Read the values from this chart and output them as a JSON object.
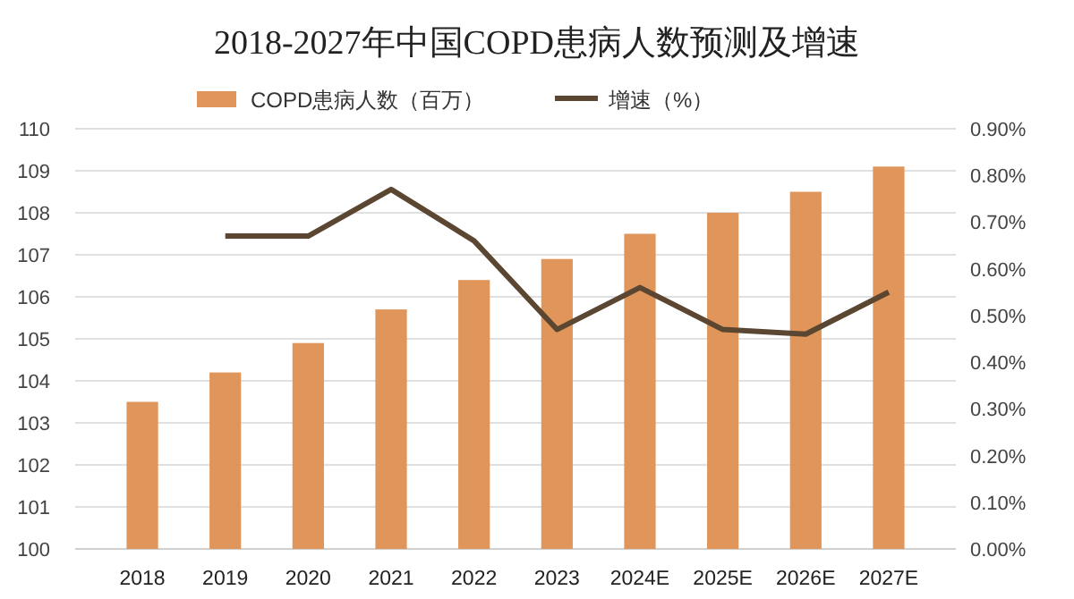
{
  "chart_data": {
    "type": "bar",
    "title": "2018-2027年中国COPD患病人数预测及增速",
    "categories": [
      "2018",
      "2019",
      "2020",
      "2021",
      "2022",
      "2023",
      "2024E",
      "2025E",
      "2026E",
      "2027E"
    ],
    "series": [
      {
        "name": "COPD患病人数（百万）",
        "color": "#e0955a",
        "values": [
          103.5,
          104.2,
          104.9,
          105.7,
          106.4,
          106.9,
          107.5,
          108.0,
          108.5,
          109.1
        ]
      },
      {
        "name": "增速（%）",
        "type": "line",
        "axis": "y2",
        "color": "#5b4631",
        "values": [
          null,
          0.67,
          0.67,
          0.77,
          0.66,
          0.47,
          0.56,
          0.47,
          0.46,
          0.55
        ]
      }
    ],
    "ylim": [
      100,
      110
    ],
    "yticks": [
      100,
      101,
      102,
      103,
      104,
      105,
      106,
      107,
      108,
      109,
      110
    ],
    "y2lim": [
      0,
      0.9
    ],
    "y2ticks": [
      {
        "value": 0,
        "label": "0.00%"
      },
      {
        "value": 0.1,
        "label": "0.10%"
      },
      {
        "value": 0.2,
        "label": "0.20%"
      },
      {
        "value": 0.3,
        "label": "0.30%"
      },
      {
        "value": 0.4,
        "label": "0.40%"
      },
      {
        "value": 0.5,
        "label": "0.50%"
      },
      {
        "value": 0.6,
        "label": "0.60%"
      },
      {
        "value": 0.7,
        "label": "0.70%"
      },
      {
        "value": 0.8,
        "label": "0.80%"
      },
      {
        "value": 0.9,
        "label": "0.90%"
      }
    ],
    "grid": "y",
    "legend": "top",
    "marker": "none",
    "line_style": "solid"
  }
}
